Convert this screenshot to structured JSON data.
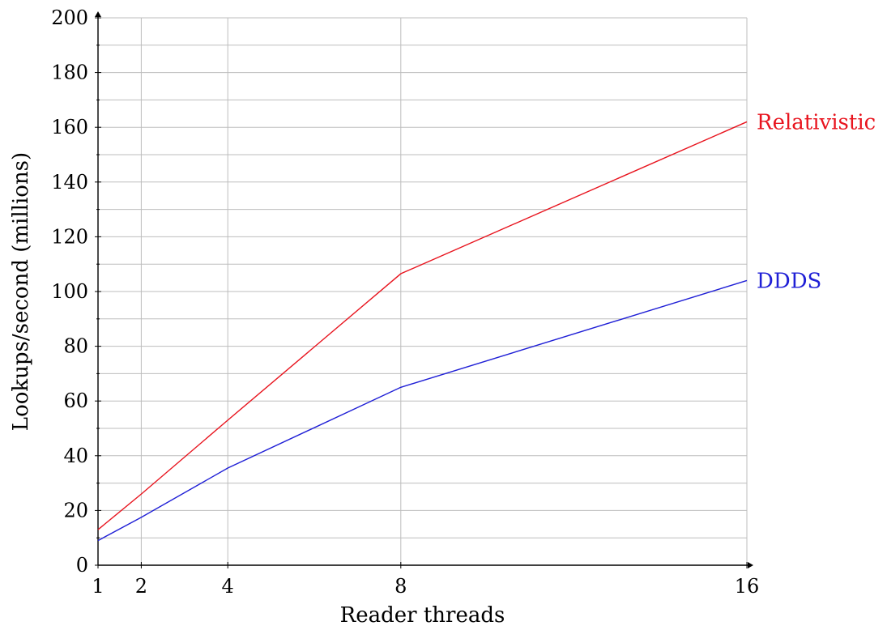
{
  "chart_data": {
    "type": "line",
    "title": "",
    "xlabel": "Reader threads",
    "ylabel": "Lookups/second (millions)",
    "x": [
      1,
      2,
      4,
      8,
      16
    ],
    "xlim": [
      1,
      16
    ],
    "ylim": [
      0,
      200
    ],
    "x_ticks": [
      1,
      2,
      4,
      8,
      16
    ],
    "y_ticks": [
      0,
      20,
      40,
      60,
      80,
      100,
      120,
      140,
      160,
      180,
      200
    ],
    "y_minor_step": 10,
    "grid": true,
    "legend": "inline labels at right end of each line",
    "series": [
      {
        "name": "Relativistic",
        "color": "#e8141e",
        "values": [
          13,
          26,
          53,
          106.5,
          162
        ]
      },
      {
        "name": "DDDS",
        "color": "#1f1fd6",
        "values": [
          9,
          17.5,
          35.5,
          65,
          104
        ]
      }
    ]
  }
}
